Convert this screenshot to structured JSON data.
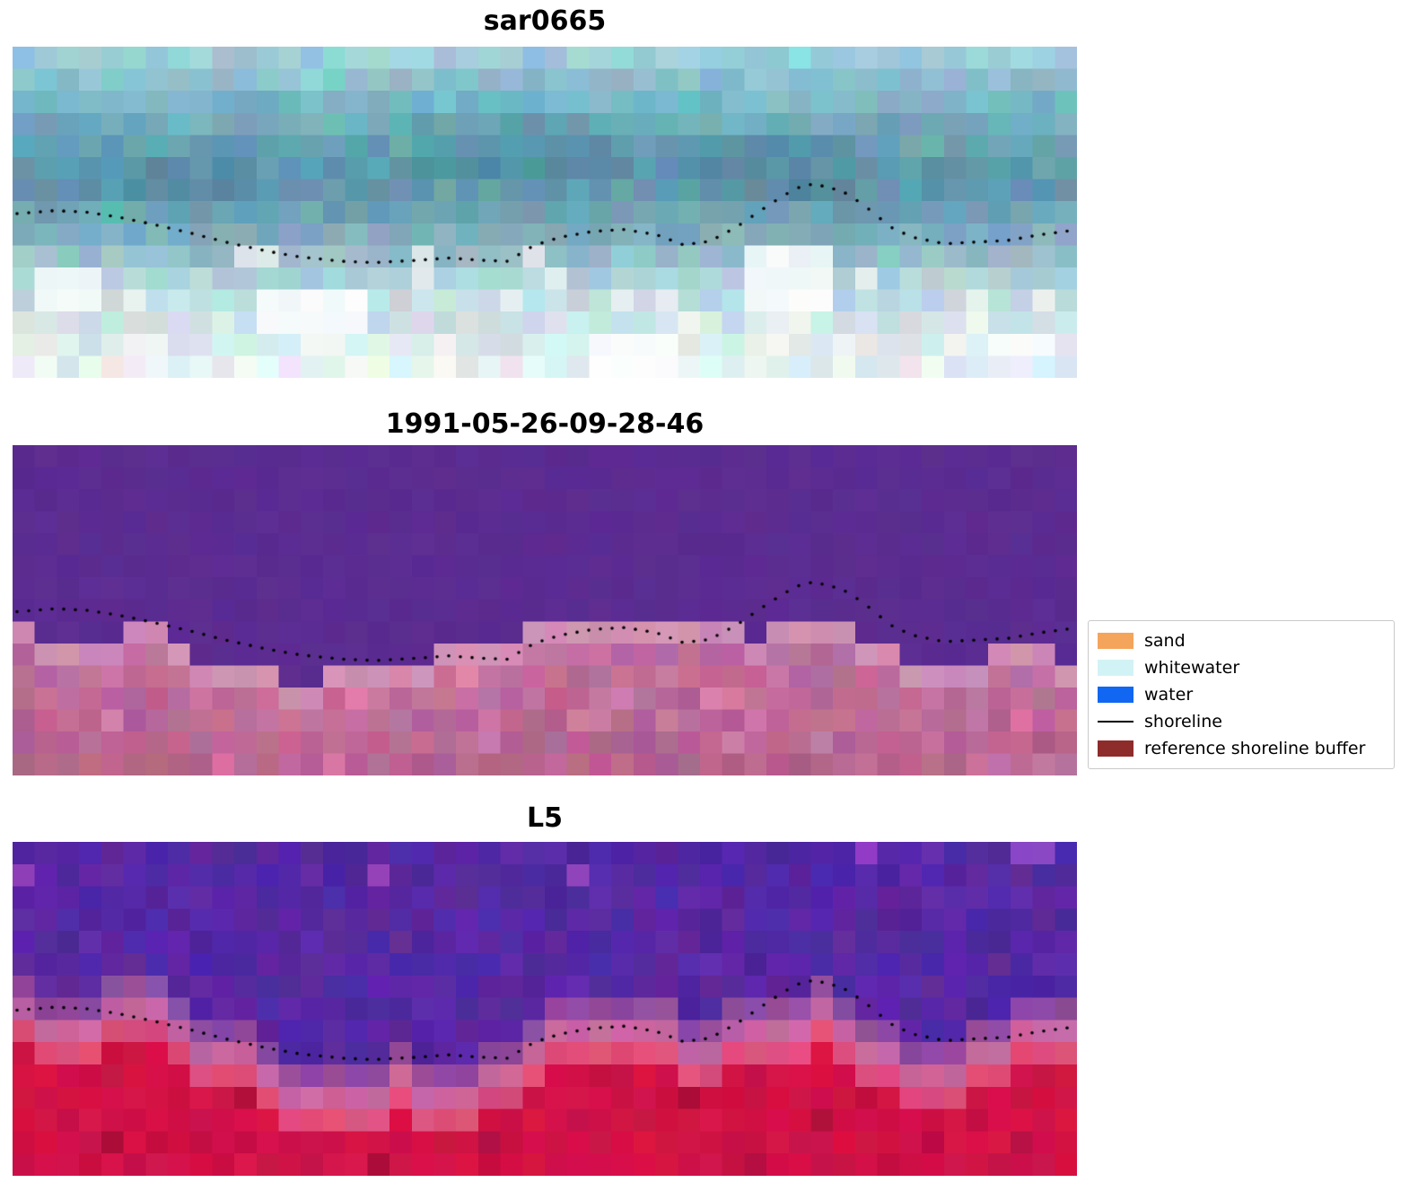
{
  "figure": {
    "panels": [
      {
        "title": "sar0665"
      },
      {
        "title": "1991-05-26-09-28-46"
      },
      {
        "title": "L5"
      }
    ],
    "legend": {
      "items": [
        {
          "label": "sand",
          "swatch": "#f5a45c",
          "type": "patch"
        },
        {
          "label": "whitewater",
          "swatch": "#d2f3f6",
          "type": "patch"
        },
        {
          "label": "water",
          "swatch": "#1167f1",
          "type": "patch"
        },
        {
          "label": "shoreline",
          "swatch": "#000000",
          "type": "line"
        },
        {
          "label": "reference shoreline buffer",
          "swatch": "#8e2c2c",
          "type": "patch"
        }
      ]
    }
  },
  "chart_data": {
    "type": "heatmap",
    "title": "",
    "panels": [
      {
        "title": "sar0665",
        "content": "pixelated RGB satellite image, teal sea above pale sandy beach with white clouds, dotted detected shoreline across middle"
      },
      {
        "title": "1991-05-26-09-28-46",
        "content": "classified image: purple water region above, pink reference shoreline buffer below, dotted detected shoreline along boundary"
      },
      {
        "title": "L5",
        "content": "false-colour Landsat 5 composite: purple water above, crimson land below, dotted detected shoreline along transition"
      }
    ],
    "legend_entries": [
      "sand",
      "whitewater",
      "water",
      "shoreline",
      "reference shoreline buffer"
    ],
    "shoreline_points": [
      [
        0.0,
        0.505
      ],
      [
        0.04,
        0.495
      ],
      [
        0.07,
        0.5
      ],
      [
        0.1,
        0.515
      ],
      [
        0.13,
        0.535
      ],
      [
        0.17,
        0.565
      ],
      [
        0.2,
        0.59
      ],
      [
        0.24,
        0.618
      ],
      [
        0.27,
        0.635
      ],
      [
        0.31,
        0.648
      ],
      [
        0.34,
        0.652
      ],
      [
        0.38,
        0.645
      ],
      [
        0.41,
        0.638
      ],
      [
        0.44,
        0.645
      ],
      [
        0.465,
        0.648
      ],
      [
        0.49,
        0.6
      ],
      [
        0.515,
        0.575
      ],
      [
        0.545,
        0.558
      ],
      [
        0.575,
        0.552
      ],
      [
        0.605,
        0.568
      ],
      [
        0.63,
        0.598
      ],
      [
        0.655,
        0.588
      ],
      [
        0.68,
        0.545
      ],
      [
        0.705,
        0.49
      ],
      [
        0.725,
        0.448
      ],
      [
        0.745,
        0.415
      ],
      [
        0.765,
        0.422
      ],
      [
        0.785,
        0.445
      ],
      [
        0.805,
        0.492
      ],
      [
        0.825,
        0.545
      ],
      [
        0.845,
        0.575
      ],
      [
        0.875,
        0.595
      ],
      [
        0.905,
        0.59
      ],
      [
        0.935,
        0.585
      ],
      [
        0.965,
        0.568
      ],
      [
        1.0,
        0.553
      ]
    ],
    "colors": {
      "classified_water": "#5b2c91",
      "classified_buffer": "#c06d9d",
      "l5_water": "#5628a2",
      "l5_land": "#d01246",
      "sar_sea": "#699eb1",
      "sar_beach": "#dfecee",
      "shoreline_dots": "#000000"
    }
  },
  "render": {
    "sar_rows": [
      "#9fccd8",
      "#8abfcf",
      "#7cb4c7",
      "#72a9bd",
      "#699fb3",
      "#6299ad",
      "#659aae",
      "#6fa2b3",
      "#80afbe",
      "#97c0cb",
      "#afd0d8",
      "#c2dce1",
      "#d0e4e8",
      "#dbebed",
      "#e4f0f1"
    ],
    "class_purple": "#5b2c91",
    "class_pink_edge": "#d08fb4",
    "class_pink": "#c06d9d",
    "class_pink_deep": "#b05f86",
    "l5_purple": "#5628a2",
    "l5_transition": "#8f4a9f",
    "l5_pink": "#c4679f",
    "l5_lightred": "#de4f7b",
    "l5_red": "#d01246",
    "dot_color": "#000000"
  }
}
